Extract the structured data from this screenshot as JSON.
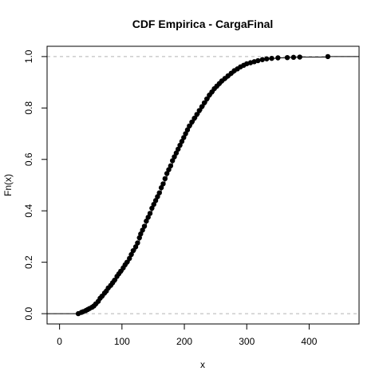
{
  "chart_data": {
    "type": "scatter",
    "title": "CDF Empirica - CargaFinal",
    "xlabel": "x",
    "ylabel": "Fn(x)",
    "xlim": [
      -20,
      480
    ],
    "ylim": [
      -0.04,
      1.04
    ],
    "x_ticks": [
      0,
      100,
      200,
      300,
      400
    ],
    "y_ticks": [
      0.0,
      0.2,
      0.4,
      0.6,
      0.8,
      1.0
    ],
    "x_tick_labels": [
      "0",
      "100",
      "200",
      "300",
      "400"
    ],
    "y_tick_labels": [
      "0.0",
      "0.2",
      "0.4",
      "0.6",
      "0.8",
      "1.0"
    ],
    "reference_lines": [
      0.0,
      1.0
    ],
    "grid": false,
    "points": [
      {
        "x": 30,
        "y": 0.0
      },
      {
        "x": 35,
        "y": 0.005
      },
      {
        "x": 38,
        "y": 0.008
      },
      {
        "x": 42,
        "y": 0.012
      },
      {
        "x": 45,
        "y": 0.016
      },
      {
        "x": 48,
        "y": 0.02
      },
      {
        "x": 52,
        "y": 0.025
      },
      {
        "x": 55,
        "y": 0.03
      },
      {
        "x": 58,
        "y": 0.038
      },
      {
        "x": 62,
        "y": 0.048
      },
      {
        "x": 65,
        "y": 0.06
      },
      {
        "x": 68,
        "y": 0.068
      },
      {
        "x": 72,
        "y": 0.08
      },
      {
        "x": 75,
        "y": 0.088
      },
      {
        "x": 78,
        "y": 0.1
      },
      {
        "x": 82,
        "y": 0.11
      },
      {
        "x": 85,
        "y": 0.12
      },
      {
        "x": 88,
        "y": 0.13
      },
      {
        "x": 92,
        "y": 0.145
      },
      {
        "x": 95,
        "y": 0.155
      },
      {
        "x": 98,
        "y": 0.165
      },
      {
        "x": 102,
        "y": 0.178
      },
      {
        "x": 105,
        "y": 0.19
      },
      {
        "x": 108,
        "y": 0.2
      },
      {
        "x": 112,
        "y": 0.215
      },
      {
        "x": 115,
        "y": 0.23
      },
      {
        "x": 118,
        "y": 0.245
      },
      {
        "x": 122,
        "y": 0.26
      },
      {
        "x": 125,
        "y": 0.275
      },
      {
        "x": 128,
        "y": 0.295
      },
      {
        "x": 130,
        "y": 0.31
      },
      {
        "x": 133,
        "y": 0.325
      },
      {
        "x": 136,
        "y": 0.34
      },
      {
        "x": 139,
        "y": 0.36
      },
      {
        "x": 142,
        "y": 0.375
      },
      {
        "x": 145,
        "y": 0.39
      },
      {
        "x": 148,
        "y": 0.41
      },
      {
        "x": 151,
        "y": 0.425
      },
      {
        "x": 154,
        "y": 0.44
      },
      {
        "x": 157,
        "y": 0.455
      },
      {
        "x": 160,
        "y": 0.47
      },
      {
        "x": 163,
        "y": 0.49
      },
      {
        "x": 166,
        "y": 0.505
      },
      {
        "x": 169,
        "y": 0.525
      },
      {
        "x": 172,
        "y": 0.545
      },
      {
        "x": 175,
        "y": 0.56
      },
      {
        "x": 178,
        "y": 0.575
      },
      {
        "x": 181,
        "y": 0.595
      },
      {
        "x": 184,
        "y": 0.61
      },
      {
        "x": 187,
        "y": 0.625
      },
      {
        "x": 190,
        "y": 0.64
      },
      {
        "x": 193,
        "y": 0.655
      },
      {
        "x": 196,
        "y": 0.67
      },
      {
        "x": 199,
        "y": 0.685
      },
      {
        "x": 202,
        "y": 0.7
      },
      {
        "x": 205,
        "y": 0.715
      },
      {
        "x": 208,
        "y": 0.73
      },
      {
        "x": 212,
        "y": 0.745
      },
      {
        "x": 216,
        "y": 0.76
      },
      {
        "x": 220,
        "y": 0.775
      },
      {
        "x": 224,
        "y": 0.79
      },
      {
        "x": 228,
        "y": 0.805
      },
      {
        "x": 232,
        "y": 0.82
      },
      {
        "x": 236,
        "y": 0.835
      },
      {
        "x": 240,
        "y": 0.85
      },
      {
        "x": 244,
        "y": 0.862
      },
      {
        "x": 248,
        "y": 0.875
      },
      {
        "x": 252,
        "y": 0.885
      },
      {
        "x": 256,
        "y": 0.895
      },
      {
        "x": 260,
        "y": 0.905
      },
      {
        "x": 265,
        "y": 0.915
      },
      {
        "x": 270,
        "y": 0.925
      },
      {
        "x": 275,
        "y": 0.935
      },
      {
        "x": 280,
        "y": 0.945
      },
      {
        "x": 285,
        "y": 0.952
      },
      {
        "x": 290,
        "y": 0.96
      },
      {
        "x": 295,
        "y": 0.966
      },
      {
        "x": 300,
        "y": 0.972
      },
      {
        "x": 306,
        "y": 0.976
      },
      {
        "x": 312,
        "y": 0.98
      },
      {
        "x": 318,
        "y": 0.984
      },
      {
        "x": 325,
        "y": 0.988
      },
      {
        "x": 332,
        "y": 0.991
      },
      {
        "x": 340,
        "y": 0.993
      },
      {
        "x": 350,
        "y": 0.995
      },
      {
        "x": 365,
        "y": 0.996
      },
      {
        "x": 375,
        "y": 0.997
      },
      {
        "x": 385,
        "y": 0.998
      },
      {
        "x": 430,
        "y": 1.0
      }
    ]
  }
}
